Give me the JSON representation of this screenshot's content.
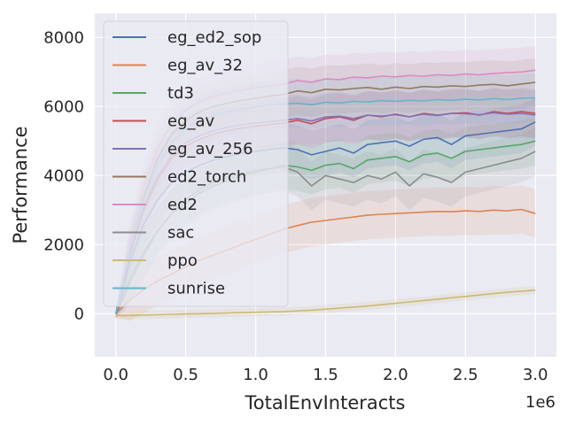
{
  "chart_data": {
    "type": "line",
    "xlabel": "TotalEnvInteracts",
    "ylabel": "Performance",
    "x_offset_label": "1e6",
    "xlim": [
      -0.15,
      3.15
    ],
    "ylim": [
      -1250,
      8700
    ],
    "x_ticks": [
      0.0,
      0.5,
      1.0,
      1.5,
      2.0,
      2.5,
      3.0
    ],
    "x_tick_labels": [
      "0.0",
      "0.5",
      "1.0",
      "1.5",
      "2.0",
      "2.5",
      "3.0"
    ],
    "y_ticks": [
      0,
      2000,
      4000,
      6000,
      8000
    ],
    "y_tick_labels": [
      "0",
      "2000",
      "4000",
      "6000",
      "8000"
    ],
    "grid": true,
    "legend_position": "upper-left",
    "x": [
      0.0,
      0.05,
      0.1,
      0.2,
      0.3,
      0.4,
      0.5,
      0.6,
      0.7,
      0.8,
      0.9,
      1.0,
      1.1,
      1.2,
      1.3,
      1.4,
      1.5,
      1.6,
      1.7,
      1.8,
      1.9,
      2.0,
      2.1,
      2.2,
      2.3,
      2.4,
      2.5,
      2.6,
      2.7,
      2.8,
      2.9,
      3.0
    ],
    "series": [
      {
        "name": "eg_ed2_sop",
        "color": "#4c72b0",
        "values": [
          0,
          700,
          1500,
          2600,
          3300,
          3800,
          4100,
          4300,
          4450,
          4550,
          4650,
          4700,
          4750,
          4800,
          4750,
          4600,
          4700,
          4800,
          4650,
          4900,
          4950,
          5000,
          4850,
          5050,
          5100,
          4900,
          5150,
          5200,
          5250,
          5300,
          5350,
          5550
        ]
      },
      {
        "name": "eg_av_32",
        "color": "#dd8452",
        "values": [
          0,
          200,
          400,
          700,
          950,
          1150,
          1350,
          1550,
          1700,
          1850,
          2000,
          2150,
          2300,
          2450,
          2550,
          2650,
          2700,
          2750,
          2800,
          2850,
          2880,
          2900,
          2920,
          2940,
          2960,
          2950,
          2980,
          2960,
          3000,
          2980,
          3020,
          2900
        ]
      },
      {
        "name": "td3",
        "color": "#55a868",
        "values": [
          0,
          500,
          1000,
          1800,
          2400,
          2900,
          3200,
          3500,
          3700,
          3850,
          4000,
          4100,
          4200,
          4300,
          4250,
          4150,
          4300,
          4350,
          4200,
          4450,
          4500,
          4550,
          4400,
          4600,
          4650,
          4500,
          4700,
          4750,
          4800,
          4850,
          4900,
          5000
        ]
      },
      {
        "name": "eg_av",
        "color": "#c44e52",
        "values": [
          0,
          800,
          1700,
          3000,
          3900,
          4500,
          4850,
          5050,
          5200,
          5300,
          5380,
          5430,
          5480,
          5520,
          5600,
          5500,
          5650,
          5700,
          5600,
          5750,
          5700,
          5780,
          5700,
          5800,
          5750,
          5800,
          5820,
          5750,
          5850,
          5800,
          5850,
          5800
        ]
      },
      {
        "name": "eg_av_256",
        "color": "#8172b3",
        "values": [
          0,
          850,
          1750,
          3100,
          4000,
          4600,
          4950,
          5150,
          5300,
          5400,
          5470,
          5520,
          5560,
          5600,
          5650,
          5580,
          5700,
          5720,
          5650,
          5750,
          5720,
          5760,
          5700,
          5780,
          5740,
          5800,
          5790,
          5760,
          5820,
          5780,
          5800,
          5750
        ]
      },
      {
        "name": "ed2_torch",
        "color": "#937860",
        "values": [
          0,
          900,
          1900,
          3400,
          4500,
          5200,
          5600,
          5850,
          6000,
          6100,
          6180,
          6240,
          6300,
          6350,
          6450,
          6400,
          6500,
          6480,
          6520,
          6550,
          6500,
          6560,
          6520,
          6580,
          6560,
          6600,
          6580,
          6620,
          6640,
          6600,
          6650,
          6700
        ]
      },
      {
        "name": "ed2",
        "color": "#da8bc3",
        "values": [
          0,
          1000,
          2100,
          3700,
          4800,
          5500,
          5900,
          6150,
          6300,
          6400,
          6480,
          6540,
          6600,
          6650,
          6750,
          6700,
          6800,
          6780,
          6850,
          6830,
          6880,
          6860,
          6900,
          6880,
          6920,
          6900,
          6940,
          6920,
          6960,
          6980,
          7000,
          7050
        ]
      },
      {
        "name": "sac",
        "color": "#8c8c8c",
        "values": [
          0,
          400,
          900,
          1700,
          2400,
          2900,
          3300,
          3600,
          3800,
          3950,
          4050,
          4150,
          4200,
          4250,
          4100,
          3700,
          4000,
          3900,
          3800,
          4000,
          3900,
          4100,
          3700,
          4050,
          3950,
          3800,
          4100,
          4200,
          4300,
          4400,
          4500,
          4700
        ]
      },
      {
        "name": "ppo",
        "color": "#ccb974",
        "values": [
          -50,
          -60,
          -50,
          -40,
          -30,
          -20,
          -10,
          0,
          10,
          20,
          30,
          40,
          50,
          60,
          80,
          100,
          130,
          160,
          190,
          220,
          260,
          300,
          340,
          380,
          420,
          460,
          500,
          540,
          580,
          620,
          650,
          680
        ]
      },
      {
        "name": "sunrise",
        "color": "#64b5cd",
        "values": [
          0,
          900,
          1900,
          3300,
          4300,
          4950,
          5350,
          5600,
          5750,
          5850,
          5930,
          5990,
          6040,
          6080,
          6100,
          6050,
          6120,
          6100,
          6150,
          6130,
          6170,
          6150,
          6180,
          6160,
          6200,
          6180,
          6210,
          6190,
          6230,
          6200,
          6240,
          6250
        ]
      }
    ]
  }
}
